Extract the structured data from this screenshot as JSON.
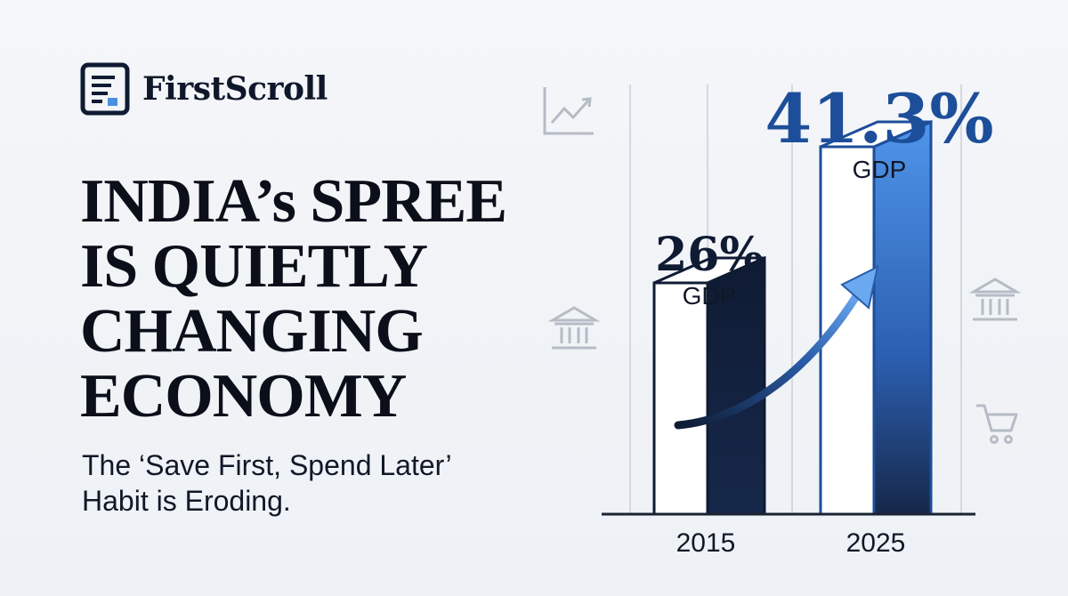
{
  "brand": {
    "name": "FirstScroll",
    "icon": "document-icon"
  },
  "headline": {
    "lines": [
      "INDIA’s SPREE",
      "IS QUIETLY",
      "CHANGING",
      "ECONOMY"
    ]
  },
  "subtitle": {
    "lines": [
      "The ‘Save First, Spend Later’",
      "Habit is Eroding."
    ]
  },
  "decor_icons": [
    "line-chart-icon",
    "bank-icon",
    "bank-icon",
    "shopping-cart-icon"
  ],
  "colors": {
    "navy": "#0f1b33",
    "blue": "#1d4e9a",
    "bright_blue": "#4a90e2",
    "gray_icon": "#b5bcc6"
  },
  "chart_data": {
    "type": "bar",
    "categories": [
      "2015",
      "2025"
    ],
    "values": [
      26,
      41.3
    ],
    "unit": "%",
    "labels": [
      {
        "value": "26%",
        "caption": "GDP"
      },
      {
        "value": "41.3%",
        "caption": "GDP"
      }
    ],
    "trend_arrow": true,
    "ylim": [
      0,
      45
    ],
    "grid": true
  }
}
